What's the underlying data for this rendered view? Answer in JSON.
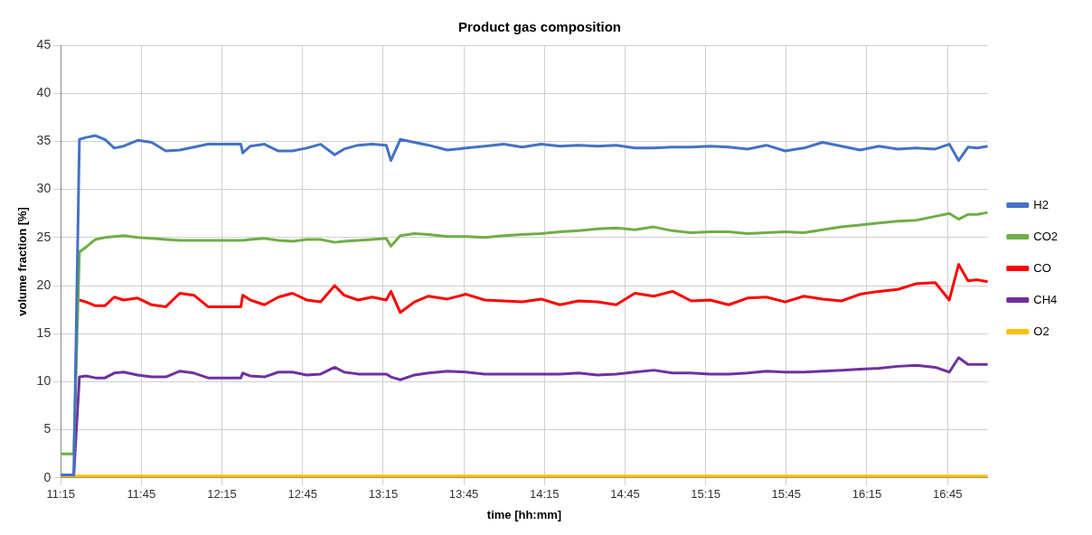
{
  "chart_data": {
    "type": "line",
    "title": "Product gas composition",
    "xlabel": "time [hh:mm]",
    "ylabel": "volume fraction [%]",
    "x": [
      11.25,
      11.331,
      11.366,
      11.407,
      11.465,
      11.524,
      11.582,
      11.64,
      11.727,
      11.814,
      11.902,
      11.989,
      12.076,
      12.164,
      12.222,
      12.367,
      12.379,
      12.426,
      12.513,
      12.6,
      12.687,
      12.775,
      12.862,
      12.949,
      13.007,
      13.094,
      13.182,
      13.269,
      13.298,
      13.356,
      13.444,
      13.531,
      13.648,
      13.764,
      13.88,
      13.997,
      14.113,
      14.229,
      14.346,
      14.462,
      14.579,
      14.695,
      14.811,
      14.928,
      15.044,
      15.161,
      15.277,
      15.393,
      15.51,
      15.626,
      15.743,
      15.859,
      15.975,
      16.092,
      16.208,
      16.325,
      16.441,
      16.557,
      16.674,
      16.761,
      16.819,
      16.877,
      16.935,
      17.0
    ],
    "series": [
      {
        "name": "H2",
        "color": "#4472c4",
        "values": [
          0.3,
          0.3,
          35.2,
          35.4,
          35.6,
          35.2,
          34.3,
          34.5,
          35.1,
          34.9,
          34.0,
          34.1,
          34.4,
          34.7,
          34.7,
          34.7,
          33.8,
          34.5,
          34.7,
          34.0,
          34.0,
          34.3,
          34.7,
          33.6,
          34.2,
          34.6,
          34.7,
          34.6,
          33.0,
          35.2,
          34.9,
          34.6,
          34.1,
          34.3,
          34.5,
          34.7,
          34.4,
          34.7,
          34.5,
          34.6,
          34.5,
          34.6,
          34.3,
          34.3,
          34.4,
          34.4,
          34.5,
          34.4,
          34.2,
          34.6,
          34.0,
          34.3,
          34.9,
          34.5,
          34.1,
          34.5,
          34.2,
          34.3,
          34.2,
          34.7,
          33.0,
          34.4,
          34.3,
          34.5
        ]
      },
      {
        "name": "CO2",
        "color": "#70ad47",
        "values": [
          2.5,
          2.5,
          23.5,
          24.0,
          24.8,
          25.0,
          25.1,
          25.2,
          25.0,
          24.9,
          24.8,
          24.7,
          24.7,
          24.7,
          24.7,
          24.7,
          24.7,
          24.8,
          24.9,
          24.7,
          24.6,
          24.8,
          24.8,
          24.5,
          24.6,
          24.7,
          24.8,
          24.9,
          24.1,
          25.2,
          25.4,
          25.3,
          25.1,
          25.1,
          25.0,
          25.2,
          25.3,
          25.4,
          25.6,
          25.7,
          25.9,
          26.0,
          25.8,
          26.1,
          25.7,
          25.5,
          25.6,
          25.6,
          25.4,
          25.5,
          25.6,
          25.5,
          25.8,
          26.1,
          26.3,
          26.5,
          26.7,
          26.8,
          27.2,
          27.5,
          26.9,
          27.4,
          27.4,
          27.6
        ]
      },
      {
        "name": "CO",
        "color": "#ff0000",
        "values": [
          null,
          null,
          18.5,
          18.3,
          17.9,
          17.9,
          18.8,
          18.5,
          18.7,
          18.0,
          17.8,
          19.2,
          19.0,
          17.8,
          17.8,
          17.8,
          19.0,
          18.5,
          18.0,
          18.8,
          19.2,
          18.5,
          18.3,
          20.0,
          19.0,
          18.5,
          18.8,
          18.5,
          19.4,
          17.2,
          18.3,
          18.9,
          18.6,
          19.1,
          18.5,
          18.4,
          18.3,
          18.6,
          18.0,
          18.4,
          18.3,
          18.0,
          19.2,
          18.9,
          19.4,
          18.4,
          18.5,
          18.0,
          18.7,
          18.8,
          18.3,
          18.9,
          18.6,
          18.4,
          19.1,
          19.4,
          19.6,
          20.2,
          20.3,
          18.5,
          22.2,
          20.5,
          20.6,
          20.4
        ]
      },
      {
        "name": "CH4",
        "color": "#7030a0",
        "values": [
          0.3,
          0.3,
          10.5,
          10.6,
          10.4,
          10.4,
          10.9,
          11.0,
          10.7,
          10.5,
          10.5,
          11.1,
          10.9,
          10.4,
          10.4,
          10.4,
          10.9,
          10.6,
          10.5,
          11.0,
          11.0,
          10.7,
          10.8,
          11.5,
          11.0,
          10.8,
          10.8,
          10.8,
          10.5,
          10.2,
          10.7,
          10.9,
          11.1,
          11.0,
          10.8,
          10.8,
          10.8,
          10.8,
          10.8,
          10.9,
          10.7,
          10.8,
          11.0,
          11.2,
          10.9,
          10.9,
          10.8,
          10.8,
          10.9,
          11.1,
          11.0,
          11.0,
          11.1,
          11.2,
          11.3,
          11.4,
          11.6,
          11.7,
          11.5,
          11.0,
          12.5,
          11.8,
          11.8,
          11.8
        ]
      },
      {
        "name": "O2",
        "color": "#ffc000",
        "x": [
          11.25,
          17.0
        ],
        "values": [
          0.2,
          0.2
        ]
      }
    ],
    "xlim": [
      11.25,
      17.0
    ],
    "xticks": [
      {
        "value": 11.25,
        "label": "11:15"
      },
      {
        "value": 11.75,
        "label": "11:45"
      },
      {
        "value": 12.25,
        "label": "12:15"
      },
      {
        "value": 12.75,
        "label": "12:45"
      },
      {
        "value": 13.25,
        "label": "13:15"
      },
      {
        "value": 13.75,
        "label": "13:45"
      },
      {
        "value": 14.25,
        "label": "14:15"
      },
      {
        "value": 14.75,
        "label": "14:45"
      },
      {
        "value": 15.25,
        "label": "15:15"
      },
      {
        "value": 15.75,
        "label": "15:45"
      },
      {
        "value": 16.25,
        "label": "16:15"
      },
      {
        "value": 16.75,
        "label": "16:45"
      }
    ],
    "ylim": [
      0,
      45
    ],
    "yticks": [
      0,
      5,
      10,
      15,
      20,
      25,
      30,
      35,
      40,
      45
    ],
    "grid": true,
    "legend": "right",
    "marker": "none",
    "line_style": "solid"
  }
}
